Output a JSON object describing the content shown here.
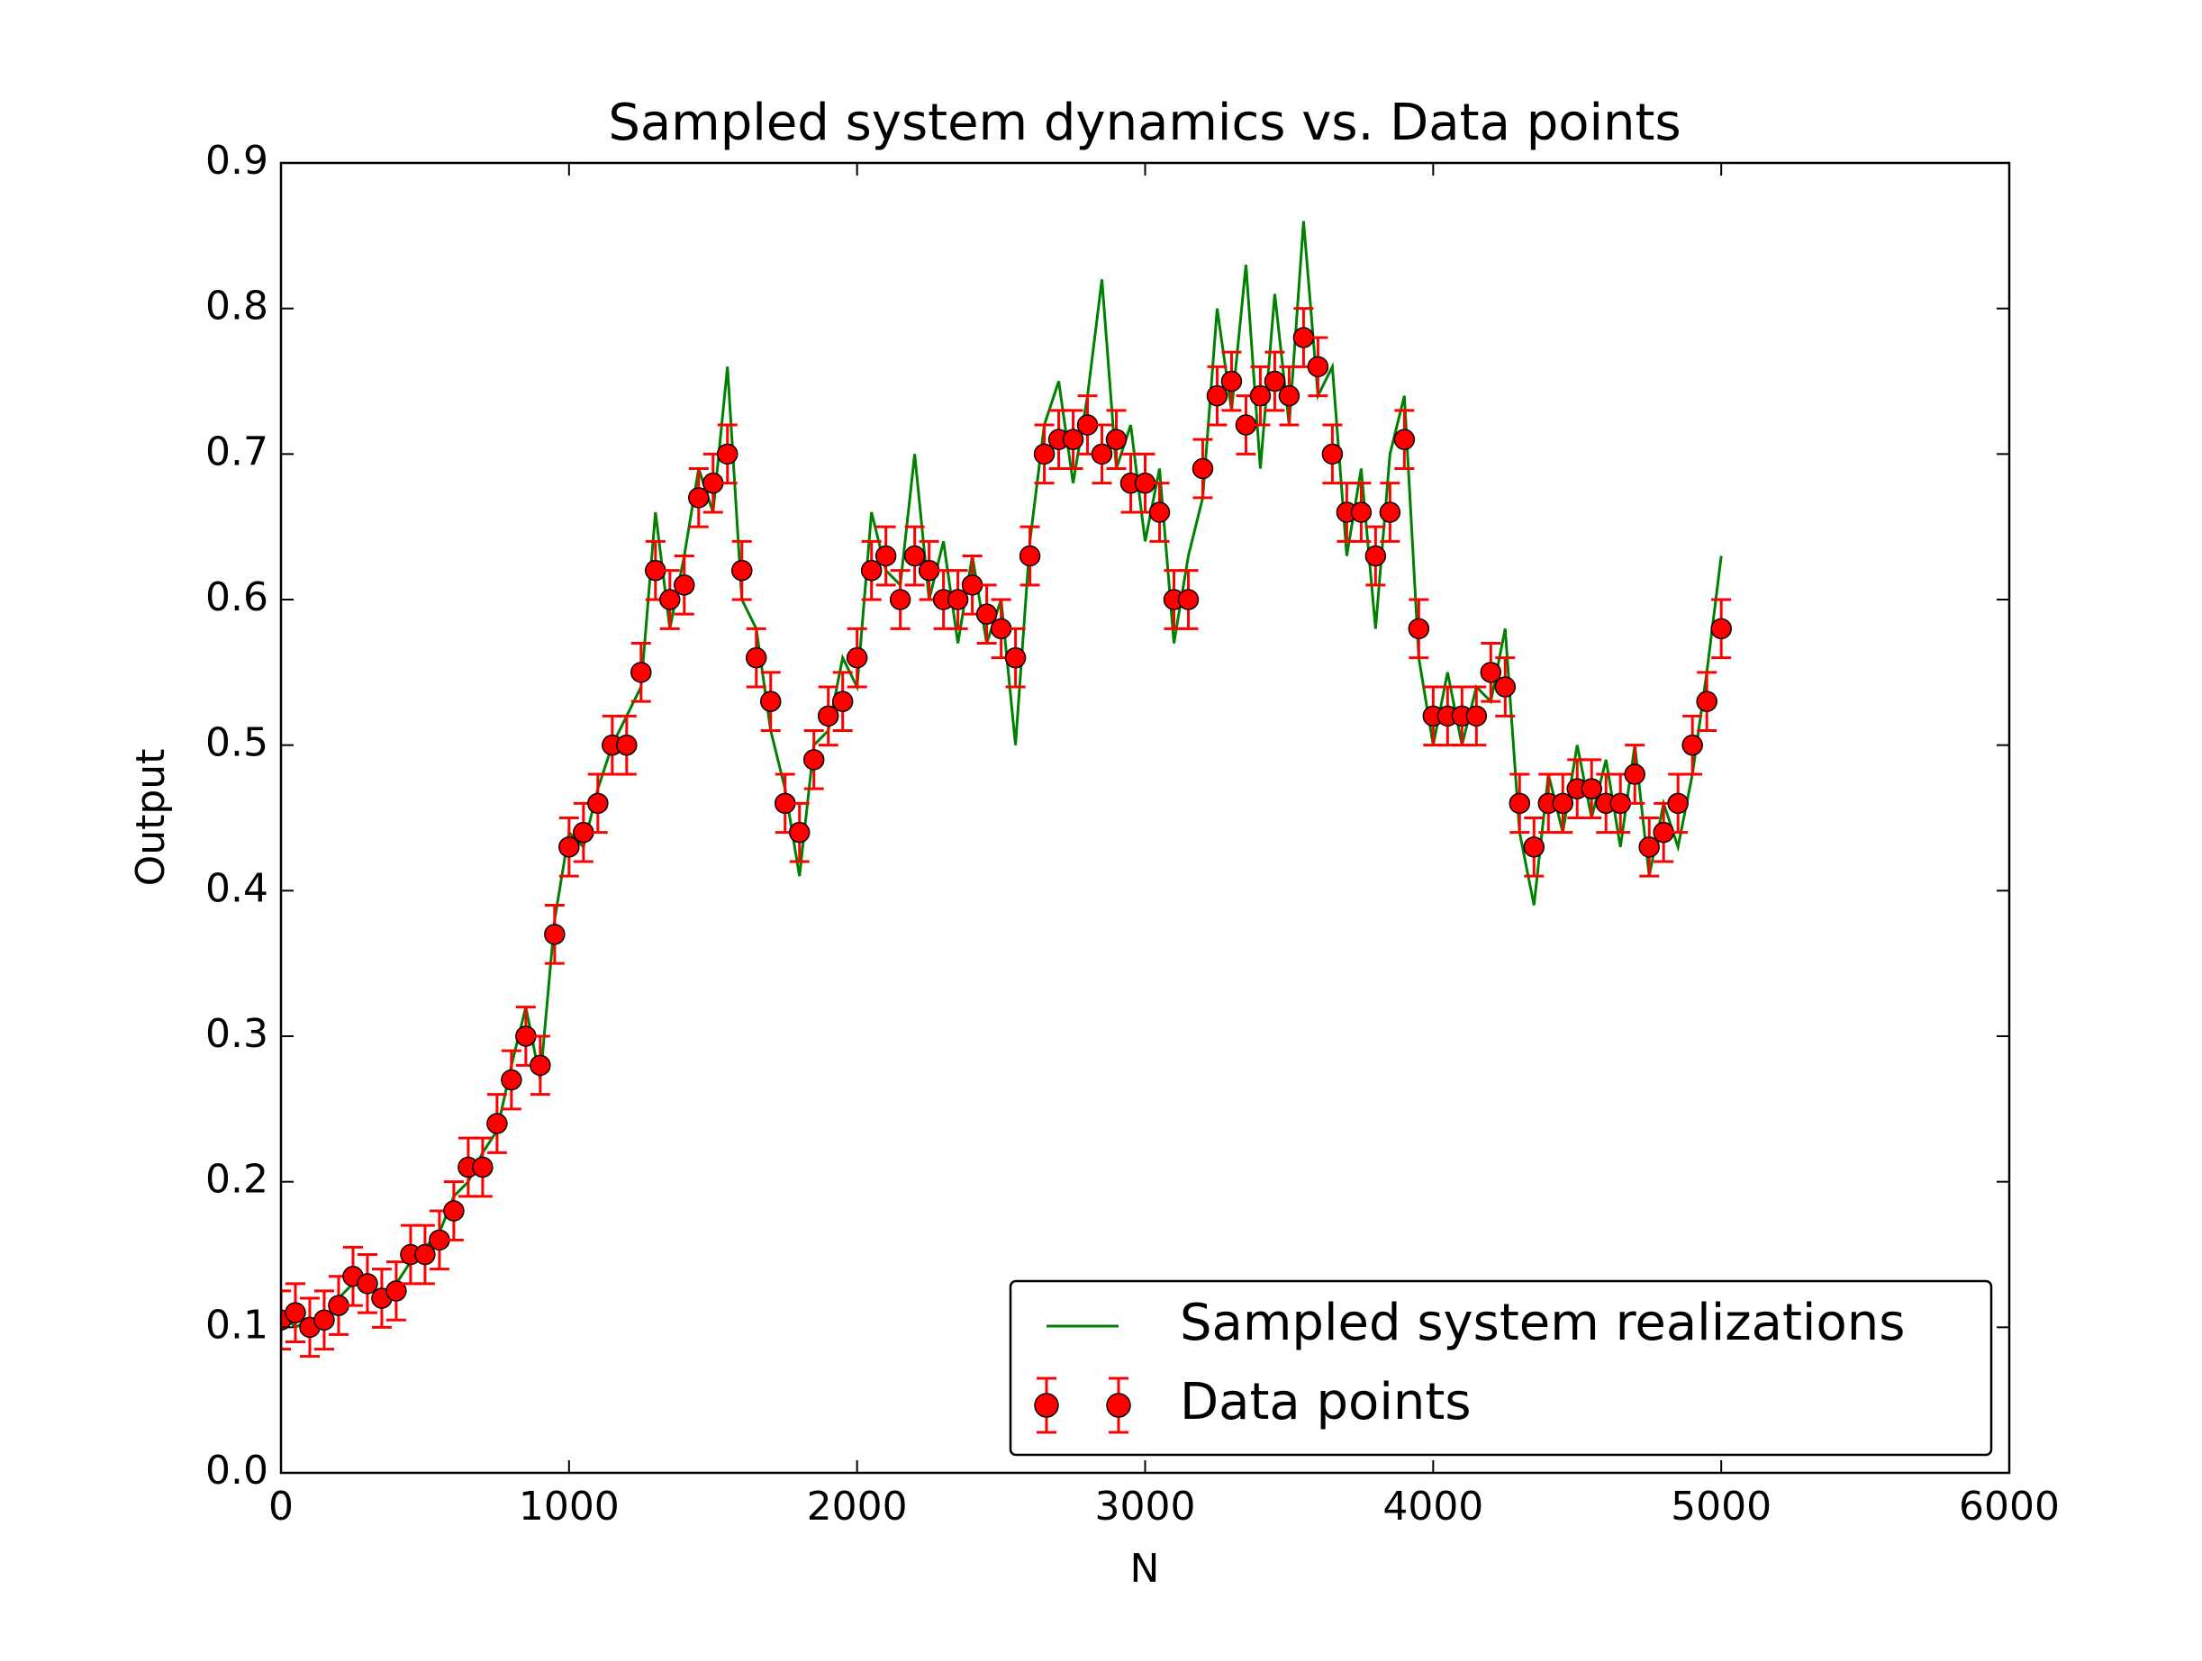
{
  "chart_data": {
    "type": "line",
    "title": "Sampled system dynamics vs. Data points",
    "xlabel": "N",
    "ylabel": "Output",
    "x": [
      0,
      50,
      100,
      150,
      200,
      250,
      300,
      350,
      400,
      450,
      500,
      550,
      600,
      650,
      700,
      750,
      800,
      850,
      900,
      950,
      1000,
      1050,
      1100,
      1150,
      1200,
      1250,
      1300,
      1350,
      1400,
      1450,
      1500,
      1550,
      1600,
      1650,
      1700,
      1750,
      1800,
      1850,
      1900,
      1950,
      2000,
      2050,
      2100,
      2150,
      2200,
      2250,
      2300,
      2350,
      2400,
      2450,
      2500,
      2550,
      2600,
      2650,
      2700,
      2750,
      2800,
      2850,
      2900,
      2950,
      3000,
      3050,
      3100,
      3150,
      3200,
      3250,
      3300,
      3350,
      3400,
      3450,
      3500,
      3550,
      3600,
      3650,
      3700,
      3750,
      3800,
      3850,
      3900,
      3950,
      4000,
      4050,
      4100,
      4150,
      4200,
      4250,
      4300,
      4350,
      4400,
      4450,
      4500,
      4550,
      4600,
      4650,
      4700,
      4750,
      4800,
      4850,
      4900,
      4950,
      5000
    ],
    "series": [
      {
        "name": "Sampled system realizations",
        "type": "line",
        "color": "#008000",
        "values": [
          0.11,
          0.1,
          0.105,
          0.1,
          0.12,
          0.13,
          0.135,
          0.115,
          0.13,
          0.145,
          0.155,
          0.165,
          0.19,
          0.2,
          0.22,
          0.235,
          0.28,
          0.32,
          0.27,
          0.38,
          0.44,
          0.43,
          0.47,
          0.5,
          0.52,
          0.54,
          0.66,
          0.58,
          0.63,
          0.69,
          0.66,
          0.76,
          0.6,
          0.58,
          0.51,
          0.47,
          0.41,
          0.5,
          0.51,
          0.56,
          0.54,
          0.66,
          0.62,
          0.61,
          0.7,
          0.6,
          0.64,
          0.57,
          0.63,
          0.57,
          0.6,
          0.5,
          0.64,
          0.72,
          0.75,
          0.68,
          0.74,
          0.82,
          0.69,
          0.72,
          0.64,
          0.69,
          0.57,
          0.63,
          0.67,
          0.8,
          0.73,
          0.83,
          0.69,
          0.81,
          0.72,
          0.86,
          0.74,
          0.76,
          0.63,
          0.69,
          0.58,
          0.7,
          0.74,
          0.56,
          0.5,
          0.55,
          0.5,
          0.54,
          0.53,
          0.58,
          0.44,
          0.39,
          0.48,
          0.44,
          0.5,
          0.45,
          0.49,
          0.43,
          0.5,
          0.41,
          0.46,
          0.43,
          0.48,
          0.55,
          0.63
        ]
      },
      {
        "name": "Data points",
        "type": "errorbar",
        "color": "#ff0000",
        "error": 0.02,
        "values": [
          0.105,
          0.11,
          0.1,
          0.105,
          0.115,
          0.135,
          0.13,
          0.12,
          0.125,
          0.15,
          0.15,
          0.16,
          0.18,
          0.21,
          0.21,
          0.24,
          0.27,
          0.3,
          0.28,
          0.37,
          0.43,
          0.44,
          0.46,
          0.5,
          0.5,
          0.55,
          0.62,
          0.6,
          0.61,
          0.67,
          0.68,
          0.7,
          0.62,
          0.56,
          0.53,
          0.46,
          0.44,
          0.49,
          0.52,
          0.53,
          0.56,
          0.62,
          0.63,
          0.6,
          0.63,
          0.62,
          0.6,
          0.6,
          0.61,
          0.59,
          0.58,
          0.56,
          0.63,
          0.7,
          0.71,
          0.71,
          0.72,
          0.7,
          0.71,
          0.68,
          0.68,
          0.66,
          0.6,
          0.6,
          0.69,
          0.74,
          0.75,
          0.72,
          0.74,
          0.75,
          0.74,
          0.78,
          0.76,
          0.7,
          0.66,
          0.66,
          0.63,
          0.66,
          0.71,
          0.58,
          0.52,
          0.52,
          0.52,
          0.52,
          0.55,
          0.54,
          0.46,
          0.43,
          0.46,
          0.46,
          0.47,
          0.47,
          0.46,
          0.46,
          0.48,
          0.43,
          0.44,
          0.46,
          0.5,
          0.53,
          0.58
        ]
      }
    ],
    "xlim": [
      0,
      6000
    ],
    "xticks": [
      0,
      1000,
      2000,
      3000,
      4000,
      5000,
      6000
    ],
    "ylim": [
      0,
      0.9
    ],
    "yticks": [
      {
        "value": 0,
        "label": "0.0"
      },
      0.1,
      0.2,
      0.3,
      0.4,
      0.5,
      0.6,
      0.7,
      0.8,
      0.9
    ],
    "grid": false,
    "legend": "lower right"
  }
}
